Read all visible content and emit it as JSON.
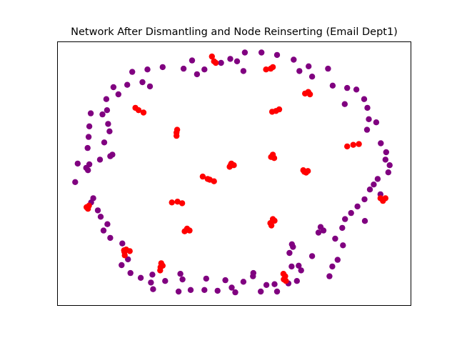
{
  "chart_data": {
    "type": "scatter",
    "title": "Network After Dismantling and Node Reinserting (Email Dept1)",
    "xlabel": "",
    "ylabel": "",
    "axes_visible": false,
    "grid": false,
    "legend": "none",
    "xlim": [
      0,
      100
    ],
    "ylim": [
      0,
      100
    ],
    "series": [
      {
        "color": "#800080",
        "points": [
          [
            53.0,
            95.8
          ],
          [
            57.7,
            95.8
          ],
          [
            62.1,
            94.9
          ],
          [
            48.9,
            93.4
          ],
          [
            66.8,
            93.1
          ],
          [
            38.1,
            92.8
          ],
          [
            50.8,
            92.5
          ],
          [
            46.3,
            91.9
          ],
          [
            71.0,
            90.6
          ],
          [
            35.7,
            89.7
          ],
          [
            41.6,
            89.4
          ],
          [
            21.2,
            88.5
          ],
          [
            25.5,
            89.4
          ],
          [
            29.8,
            90.3
          ],
          [
            52.6,
            88.8
          ],
          [
            39.5,
            87.6
          ],
          [
            68.4,
            88.8
          ],
          [
            76.5,
            89.7
          ],
          [
            24.1,
            84.6
          ],
          [
            72.0,
            86.7
          ],
          [
            26.2,
            83.0
          ],
          [
            19.8,
            83.6
          ],
          [
            15.9,
            82.7
          ],
          [
            77.8,
            83.3
          ],
          [
            81.9,
            82.4
          ],
          [
            84.5,
            81.8
          ],
          [
            17.3,
            80.0
          ],
          [
            81.2,
            76.3
          ],
          [
            86.7,
            78.2
          ],
          [
            13.9,
            78.2
          ],
          [
            9.5,
            72.8
          ],
          [
            14.1,
            74.0
          ],
          [
            87.6,
            74.9
          ],
          [
            9.1,
            67.9
          ],
          [
            8.6,
            59.7
          ],
          [
            12.8,
            72.4
          ],
          [
            88.0,
            70.6
          ],
          [
            14.4,
            68.8
          ],
          [
            90.1,
            69.4
          ],
          [
            87.5,
            66.6
          ],
          [
            14.8,
            66.0
          ],
          [
            8.9,
            63.9
          ],
          [
            13.3,
            61.8
          ],
          [
            15.0,
            56.6
          ],
          [
            15.6,
            57.2
          ],
          [
            9.1,
            53.5
          ],
          [
            5.8,
            53.8
          ],
          [
            8.7,
            51.3
          ],
          [
            8.2,
            52.2
          ],
          [
            91.4,
            61.5
          ],
          [
            92.9,
            58.1
          ],
          [
            12.1,
            55.3
          ],
          [
            93.9,
            53.2
          ],
          [
            90.5,
            48.0
          ],
          [
            89.4,
            45.9
          ],
          [
            93.5,
            50.5
          ],
          [
            92.7,
            55.3
          ],
          [
            5.1,
            46.8
          ],
          [
            10.2,
            40.7
          ],
          [
            11.5,
            36.1
          ],
          [
            9.6,
            39.1
          ],
          [
            88.3,
            44.0
          ],
          [
            91.3,
            42.2
          ],
          [
            86.8,
            40.3
          ],
          [
            84.8,
            37.6
          ],
          [
            86.9,
            32.1
          ],
          [
            12.3,
            33.7
          ],
          [
            14.2,
            30.9
          ],
          [
            13.1,
            28.5
          ],
          [
            15.0,
            25.7
          ],
          [
            83.0,
            35.1
          ],
          [
            81.3,
            32.8
          ],
          [
            80.5,
            29.5
          ],
          [
            78.5,
            25.4
          ],
          [
            80.7,
            22.9
          ],
          [
            18.4,
            23.6
          ],
          [
            20.0,
            17.6
          ],
          [
            18.2,
            15.4
          ],
          [
            20.7,
            12.4
          ],
          [
            23.6,
            10.6
          ],
          [
            75.2,
            28.5
          ],
          [
            74.4,
            29.8
          ],
          [
            73.8,
            27.7
          ],
          [
            79.2,
            17.4
          ],
          [
            77.7,
            14.9
          ],
          [
            76.9,
            11.2
          ],
          [
            66.6,
            22.3
          ],
          [
            66.3,
            23.3
          ],
          [
            65.6,
            20.0
          ],
          [
            72.0,
            18.8
          ],
          [
            68.2,
            15.2
          ],
          [
            66.2,
            14.9
          ],
          [
            68.9,
            13.4
          ],
          [
            67.7,
            9.4
          ],
          [
            65.3,
            8.5
          ],
          [
            26.9,
            11.8
          ],
          [
            27.1,
            6.3
          ],
          [
            26.5,
            8.8
          ],
          [
            34.8,
            12.1
          ],
          [
            35.4,
            10.0
          ],
          [
            34.3,
            5.4
          ],
          [
            42.1,
            10.3
          ],
          [
            47.5,
            9.7
          ],
          [
            55.4,
            12.4
          ],
          [
            52.6,
            9.1
          ],
          [
            55.3,
            11.2
          ],
          [
            59.1,
            7.9
          ],
          [
            57.5,
            5.4
          ],
          [
            61.4,
            8.2
          ],
          [
            62.1,
            5.4
          ],
          [
            30.5,
            9.4
          ],
          [
            37.7,
            6.0
          ],
          [
            41.6,
            6.0
          ],
          [
            45.3,
            5.7
          ],
          [
            49.3,
            6.9
          ],
          [
            50.3,
            5.1
          ]
        ]
      },
      {
        "color": "#ff0000",
        "points": [
          [
            43.7,
            94.3
          ],
          [
            44.3,
            92.5
          ],
          [
            44.8,
            91.9
          ],
          [
            59.0,
            89.4
          ],
          [
            60.3,
            89.7
          ],
          [
            60.9,
            90.3
          ],
          [
            70.0,
            80.3
          ],
          [
            70.9,
            80.9
          ],
          [
            71.4,
            80.0
          ],
          [
            22.1,
            74.9
          ],
          [
            23.0,
            74.0
          ],
          [
            24.4,
            73.1
          ],
          [
            60.7,
            73.4
          ],
          [
            61.8,
            73.7
          ],
          [
            62.7,
            74.3
          ],
          [
            33.7,
            65.5
          ],
          [
            33.9,
            66.6
          ],
          [
            33.7,
            64.3
          ],
          [
            81.9,
            60.3
          ],
          [
            83.6,
            60.9
          ],
          [
            85.2,
            61.2
          ],
          [
            60.9,
            57.2
          ],
          [
            60.4,
            56.3
          ],
          [
            61.3,
            55.9
          ],
          [
            49.2,
            53.8
          ],
          [
            49.9,
            53.2
          ],
          [
            49.1,
            53.5
          ],
          [
            48.7,
            52.6
          ],
          [
            48.9,
            52.9
          ],
          [
            69.5,
            51.3
          ],
          [
            70.8,
            51.0
          ],
          [
            70.3,
            50.4
          ],
          [
            69.8,
            50.7
          ],
          [
            41.1,
            48.9
          ],
          [
            42.5,
            48.0
          ],
          [
            43.1,
            47.7
          ],
          [
            44.3,
            47.1
          ],
          [
            32.4,
            39.1
          ],
          [
            34.0,
            39.4
          ],
          [
            35.3,
            38.8
          ],
          [
            91.3,
            40.7
          ],
          [
            92.0,
            39.7
          ],
          [
            92.7,
            40.7
          ],
          [
            8.3,
            37.3
          ],
          [
            8.7,
            36.7
          ],
          [
            9.0,
            37.9
          ],
          [
            60.9,
            32.8
          ],
          [
            61.4,
            32.2
          ],
          [
            60.2,
            31.3
          ],
          [
            60.5,
            30.4
          ],
          [
            36.7,
            29.2
          ],
          [
            37.4,
            28.5
          ],
          [
            36.0,
            28.2
          ],
          [
            18.9,
            21.0
          ],
          [
            19.5,
            21.3
          ],
          [
            19.0,
            20.4
          ],
          [
            20.5,
            20.7
          ],
          [
            19.1,
            19.1
          ],
          [
            29.4,
            16.1
          ],
          [
            29.8,
            15.2
          ],
          [
            29.2,
            14.6
          ],
          [
            29.1,
            13.4
          ],
          [
            63.9,
            12.1
          ],
          [
            64.4,
            11.2
          ],
          [
            64.0,
            10.0
          ],
          [
            64.6,
            9.4
          ]
        ]
      }
    ]
  }
}
